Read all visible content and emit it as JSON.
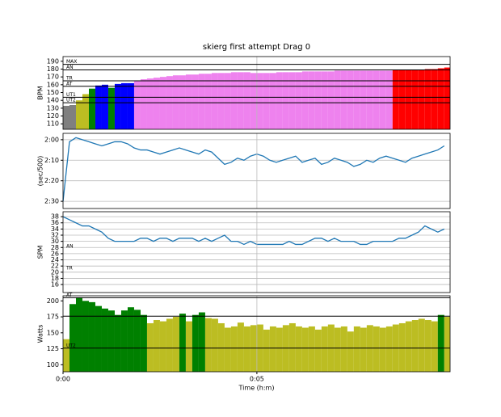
{
  "chart_data": [
    {
      "type": "bar",
      "title": "skierg first attempt Drag 0",
      "ylabel": "BPM",
      "x": [
        0,
        10,
        20,
        30,
        40,
        50,
        60,
        70,
        80,
        90,
        100,
        110,
        120,
        130,
        140,
        150,
        160,
        170,
        180,
        190,
        200,
        210,
        220,
        230,
        240,
        250,
        260,
        270,
        280,
        290,
        300,
        310,
        320,
        330,
        340,
        350,
        360,
        370,
        380,
        390,
        400,
        410,
        420,
        430,
        440,
        450,
        460,
        470,
        480,
        490,
        500,
        510,
        520,
        530,
        540,
        550,
        560,
        570,
        580,
        590
      ],
      "values": [
        133,
        134,
        140,
        148,
        155,
        159,
        160,
        156,
        161,
        162,
        162,
        165,
        167,
        168,
        169,
        170,
        171,
        172,
        172,
        173,
        173,
        174,
        174,
        175,
        175,
        175,
        176,
        176,
        176,
        175,
        175,
        175,
        175,
        176,
        176,
        176,
        176,
        177,
        177,
        177,
        177,
        177,
        178,
        178,
        178,
        178,
        178,
        178,
        178,
        178,
        178,
        179,
        179,
        179,
        179,
        179,
        180,
        180,
        181,
        182
      ],
      "colors": [
        "#808080",
        "#808080",
        "#bcbd22",
        "#bcbd22",
        "#008000",
        "#0000ff",
        "#0000ff",
        "#008000",
        "#0000ff",
        "#0000ff",
        "#0000ff",
        "#ee82ee",
        "#ee82ee",
        "#ee82ee",
        "#ee82ee",
        "#ee82ee",
        "#ee82ee",
        "#ee82ee",
        "#ee82ee",
        "#ee82ee",
        "#ee82ee",
        "#ee82ee",
        "#ee82ee",
        "#ee82ee",
        "#ee82ee",
        "#ee82ee",
        "#ee82ee",
        "#ee82ee",
        "#ee82ee",
        "#ee82ee",
        "#ee82ee",
        "#ee82ee",
        "#ee82ee",
        "#ee82ee",
        "#ee82ee",
        "#ee82ee",
        "#ee82ee",
        "#ee82ee",
        "#ee82ee",
        "#ee82ee",
        "#ee82ee",
        "#ee82ee",
        "#ee82ee",
        "#ee82ee",
        "#ee82ee",
        "#ee82ee",
        "#ee82ee",
        "#ee82ee",
        "#ee82ee",
        "#ee82ee",
        "#ee82ee",
        "#ff0000",
        "#ff0000",
        "#ff0000",
        "#ff0000",
        "#ff0000",
        "#ff0000",
        "#ff0000",
        "#ff0000",
        "#ff0000"
      ],
      "ylim": [
        103,
        196
      ],
      "yticks": [
        110,
        120,
        130,
        140,
        150,
        160,
        170,
        180,
        190
      ],
      "grid": false,
      "ref_lines": [
        {
          "value": 186,
          "label": "MAX"
        },
        {
          "value": 179,
          "label": "AN"
        },
        {
          "value": 165,
          "label": "TR"
        },
        {
          "value": 158,
          "label": "AT"
        },
        {
          "value": 144,
          "label": "UT1"
        },
        {
          "value": 137,
          "label": "UT2"
        }
      ]
    },
    {
      "type": "line",
      "ylabel": "(sec/500)",
      "color": "#1f77b4",
      "x": [
        0,
        10,
        20,
        30,
        40,
        50,
        60,
        70,
        80,
        90,
        100,
        110,
        120,
        130,
        140,
        150,
        160,
        170,
        180,
        190,
        200,
        210,
        220,
        230,
        240,
        250,
        260,
        270,
        280,
        290,
        300,
        310,
        320,
        330,
        340,
        350,
        360,
        370,
        380,
        390,
        400,
        410,
        420,
        430,
        440,
        450,
        460,
        470,
        480,
        490,
        500,
        510,
        520,
        530,
        540,
        550,
        560,
        570,
        580,
        590
      ],
      "values": [
        150,
        121,
        119,
        120,
        121,
        122,
        123,
        122,
        121,
        121,
        122,
        124,
        125,
        125,
        126,
        127,
        126,
        125,
        124,
        125,
        126,
        127,
        125,
        126,
        129,
        132,
        131,
        129,
        130,
        128,
        127,
        128,
        130,
        131,
        130,
        129,
        128,
        131,
        130,
        129,
        132,
        131,
        129,
        130,
        131,
        133,
        132,
        130,
        131,
        129,
        128,
        129,
        130,
        131,
        129,
        128,
        127,
        126,
        125,
        123
      ],
      "ylim": [
        153.5,
        116.9
      ],
      "yticks": [
        {
          "value": 120,
          "label": "2:00"
        },
        {
          "value": 130,
          "label": "2:10"
        },
        {
          "value": 140,
          "label": "2:20"
        },
        {
          "value": 150,
          "label": "2:30"
        }
      ],
      "grid": true
    },
    {
      "type": "line",
      "ylabel": "SPM",
      "color": "#1f77b4",
      "x": [
        0,
        10,
        20,
        30,
        40,
        50,
        60,
        70,
        80,
        90,
        100,
        110,
        120,
        130,
        140,
        150,
        160,
        170,
        180,
        190,
        200,
        210,
        220,
        230,
        240,
        250,
        260,
        270,
        280,
        290,
        300,
        310,
        320,
        330,
        340,
        350,
        360,
        370,
        380,
        390,
        400,
        410,
        420,
        430,
        440,
        450,
        460,
        470,
        480,
        490,
        500,
        510,
        520,
        530,
        540,
        550,
        560,
        570,
        580,
        590
      ],
      "values": [
        38,
        37,
        36,
        35,
        35,
        34,
        33,
        31,
        30,
        30,
        30,
        30,
        31,
        31,
        30,
        31,
        31,
        30,
        31,
        31,
        31,
        30,
        31,
        30,
        31,
        32,
        30,
        30,
        29,
        30,
        29,
        29,
        29,
        29,
        29,
        30,
        29,
        29,
        30,
        31,
        31,
        30,
        31,
        30,
        30,
        30,
        29,
        29,
        30,
        30,
        30,
        30,
        31,
        31,
        32,
        33,
        35,
        34,
        33,
        34
      ],
      "ylim": [
        13.4,
        39.6
      ],
      "yticks": [
        16,
        18,
        20,
        22,
        24,
        26,
        28,
        30,
        32,
        34,
        36,
        38
      ],
      "grid": true,
      "ref_lines": [
        {
          "value": 27.5,
          "label": "AN"
        },
        {
          "value": 20.5,
          "label": "TR"
        }
      ]
    },
    {
      "type": "bar",
      "ylabel": "Watts",
      "xlabel": "Time (h:m)",
      "x": [
        0,
        10,
        20,
        30,
        40,
        50,
        60,
        70,
        80,
        90,
        100,
        110,
        120,
        130,
        140,
        150,
        160,
        170,
        180,
        190,
        200,
        210,
        220,
        230,
        240,
        250,
        260,
        270,
        280,
        290,
        300,
        310,
        320,
        330,
        340,
        350,
        360,
        370,
        380,
        390,
        400,
        410,
        420,
        430,
        440,
        450,
        460,
        470,
        480,
        490,
        500,
        510,
        520,
        530,
        540,
        550,
        560,
        570,
        580,
        590
      ],
      "values": [
        140,
        195,
        205,
        200,
        198,
        192,
        188,
        185,
        178,
        185,
        190,
        186,
        178,
        165,
        170,
        168,
        172,
        175,
        180,
        168,
        178,
        182,
        173,
        172,
        165,
        158,
        160,
        166,
        160,
        162,
        163,
        155,
        160,
        158,
        162,
        165,
        160,
        158,
        160,
        155,
        160,
        163,
        158,
        160,
        152,
        160,
        158,
        162,
        160,
        158,
        160,
        163,
        165,
        168,
        170,
        172,
        170,
        168,
        178,
        175
      ],
      "colors": [
        "#bcbd22",
        "#008000",
        "#008000",
        "#008000",
        "#008000",
        "#008000",
        "#008000",
        "#008000",
        "#008000",
        "#008000",
        "#008000",
        "#008000",
        "#008000",
        "#bcbd22",
        "#bcbd22",
        "#bcbd22",
        "#bcbd22",
        "#bcbd22",
        "#008000",
        "#bcbd22",
        "#008000",
        "#008000",
        "#bcbd22",
        "#bcbd22",
        "#bcbd22",
        "#bcbd22",
        "#bcbd22",
        "#bcbd22",
        "#bcbd22",
        "#bcbd22",
        "#bcbd22",
        "#bcbd22",
        "#bcbd22",
        "#bcbd22",
        "#bcbd22",
        "#bcbd22",
        "#bcbd22",
        "#bcbd22",
        "#bcbd22",
        "#bcbd22",
        "#bcbd22",
        "#bcbd22",
        "#bcbd22",
        "#bcbd22",
        "#bcbd22",
        "#bcbd22",
        "#bcbd22",
        "#bcbd22",
        "#bcbd22",
        "#bcbd22",
        "#bcbd22",
        "#bcbd22",
        "#bcbd22",
        "#bcbd22",
        "#bcbd22",
        "#bcbd22",
        "#bcbd22",
        "#bcbd22",
        "#008000",
        "#bcbd22"
      ],
      "ylim": [
        89,
        208
      ],
      "yticks": [
        100,
        125,
        150,
        175,
        200
      ],
      "grid": false,
      "xlim": [
        0,
        599
      ],
      "xticks": [
        {
          "value": 0,
          "label": "0:00"
        },
        {
          "value": 300,
          "label": "0:05"
        }
      ],
      "ref_lines": [
        {
          "value": 205,
          "label": "AT"
        },
        {
          "value": 176
        },
        {
          "value": 126,
          "label": "UT2"
        }
      ]
    }
  ]
}
